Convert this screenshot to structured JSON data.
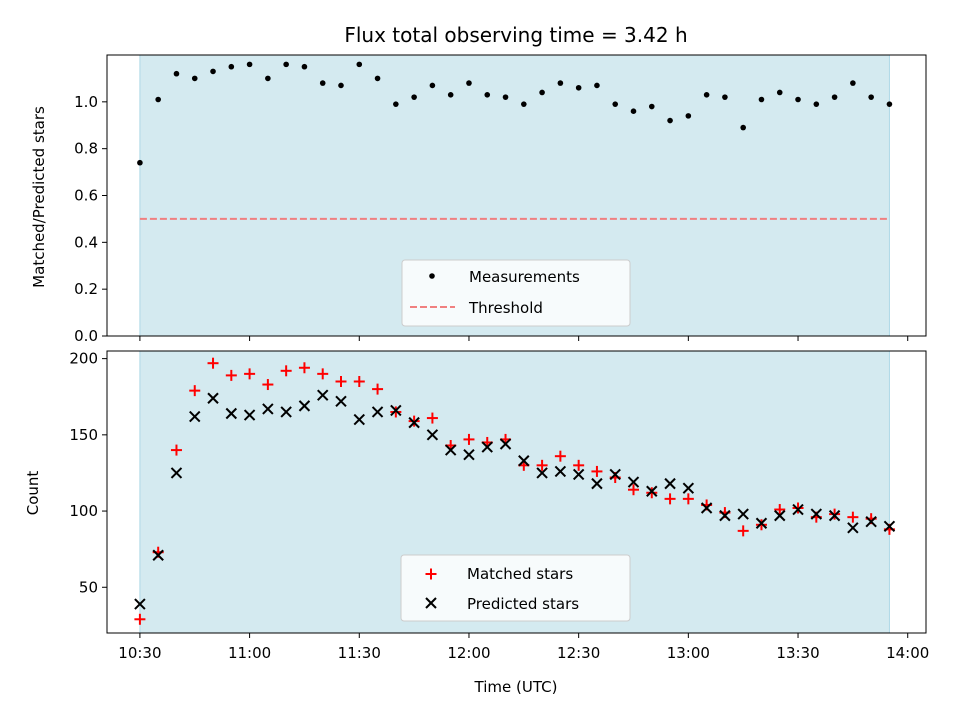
{
  "chart_data": {
    "title": "Flux total observing time = 3.42 h",
    "xlabel": "Time (UTC)",
    "x_ticks": [
      "10:30",
      "11:00",
      "11:30",
      "12:00",
      "12:30",
      "13:00",
      "13:30",
      "14:00"
    ],
    "x_range": [
      "10:21",
      "14:05"
    ],
    "observing_window": [
      "10:30",
      "13:55"
    ],
    "observing_window_color": "#d4eaf0",
    "x": [
      "10:30",
      "10:35",
      "10:40",
      "10:45",
      "10:50",
      "10:55",
      "11:00",
      "11:05",
      "11:10",
      "11:15",
      "11:20",
      "11:25",
      "11:30",
      "11:35",
      "11:40",
      "11:45",
      "11:50",
      "11:55",
      "12:00",
      "12:05",
      "12:10",
      "12:15",
      "12:20",
      "12:25",
      "12:30",
      "12:35",
      "12:40",
      "12:45",
      "12:50",
      "12:55",
      "13:00",
      "13:05",
      "13:10",
      "13:15",
      "13:20",
      "13:25",
      "13:30",
      "13:35",
      "13:40",
      "13:45",
      "13:50",
      "13:55"
    ],
    "top": {
      "type": "scatter",
      "ylabel": "Matched/Predicted stars",
      "ylim": [
        0,
        1.2
      ],
      "yticks": [
        "0.0",
        "0.2",
        "0.4",
        "0.6",
        "0.8",
        "1.0"
      ],
      "ratio_values": [
        0.74,
        1.01,
        1.12,
        1.1,
        1.13,
        1.15,
        1.16,
        1.1,
        1.16,
        1.15,
        1.08,
        1.07,
        1.16,
        1.1,
        0.99,
        1.02,
        1.07,
        1.03,
        1.08,
        1.03,
        1.02,
        0.99,
        1.04,
        1.08,
        1.06,
        1.07,
        0.99,
        0.96,
        0.98,
        0.92,
        0.94,
        1.03,
        1.02,
        0.89,
        1.01,
        1.04,
        1.01,
        0.99,
        1.02,
        1.08,
        1.02,
        0.99
      ],
      "threshold": 0.5,
      "threshold_color": "#f08080",
      "legend": [
        "Measurements",
        "Threshold"
      ]
    },
    "bottom": {
      "type": "scatter",
      "ylabel": "Count",
      "ylim": [
        20,
        205
      ],
      "yticks": [
        "50",
        "100",
        "150",
        "200"
      ],
      "series": [
        {
          "name": "Matched stars",
          "marker": "plus",
          "color": "#ff0000",
          "values": [
            29,
            73,
            140,
            179,
            197,
            189,
            190,
            183,
            192,
            194,
            190,
            185,
            185,
            180,
            165,
            159,
            161,
            143,
            147,
            145,
            147,
            130,
            130,
            136,
            130,
            126,
            122,
            114,
            112,
            108,
            108,
            104,
            99,
            87,
            91,
            101,
            102,
            96,
            98,
            96,
            95,
            88
          ]
        },
        {
          "name": "Predicted stars",
          "marker": "x",
          "color": "#000000",
          "values": [
            39,
            71,
            125,
            162,
            174,
            164,
            163,
            167,
            165,
            169,
            176,
            172,
            160,
            165,
            166,
            158,
            150,
            140,
            137,
            142,
            144,
            133,
            125,
            126,
            124,
            118,
            124,
            119,
            113,
            118,
            115,
            102,
            97,
            98,
            92,
            97,
            101,
            98,
            97,
            89,
            93,
            90
          ]
        }
      ],
      "legend": [
        "Matched stars",
        "Predicted stars"
      ]
    }
  }
}
